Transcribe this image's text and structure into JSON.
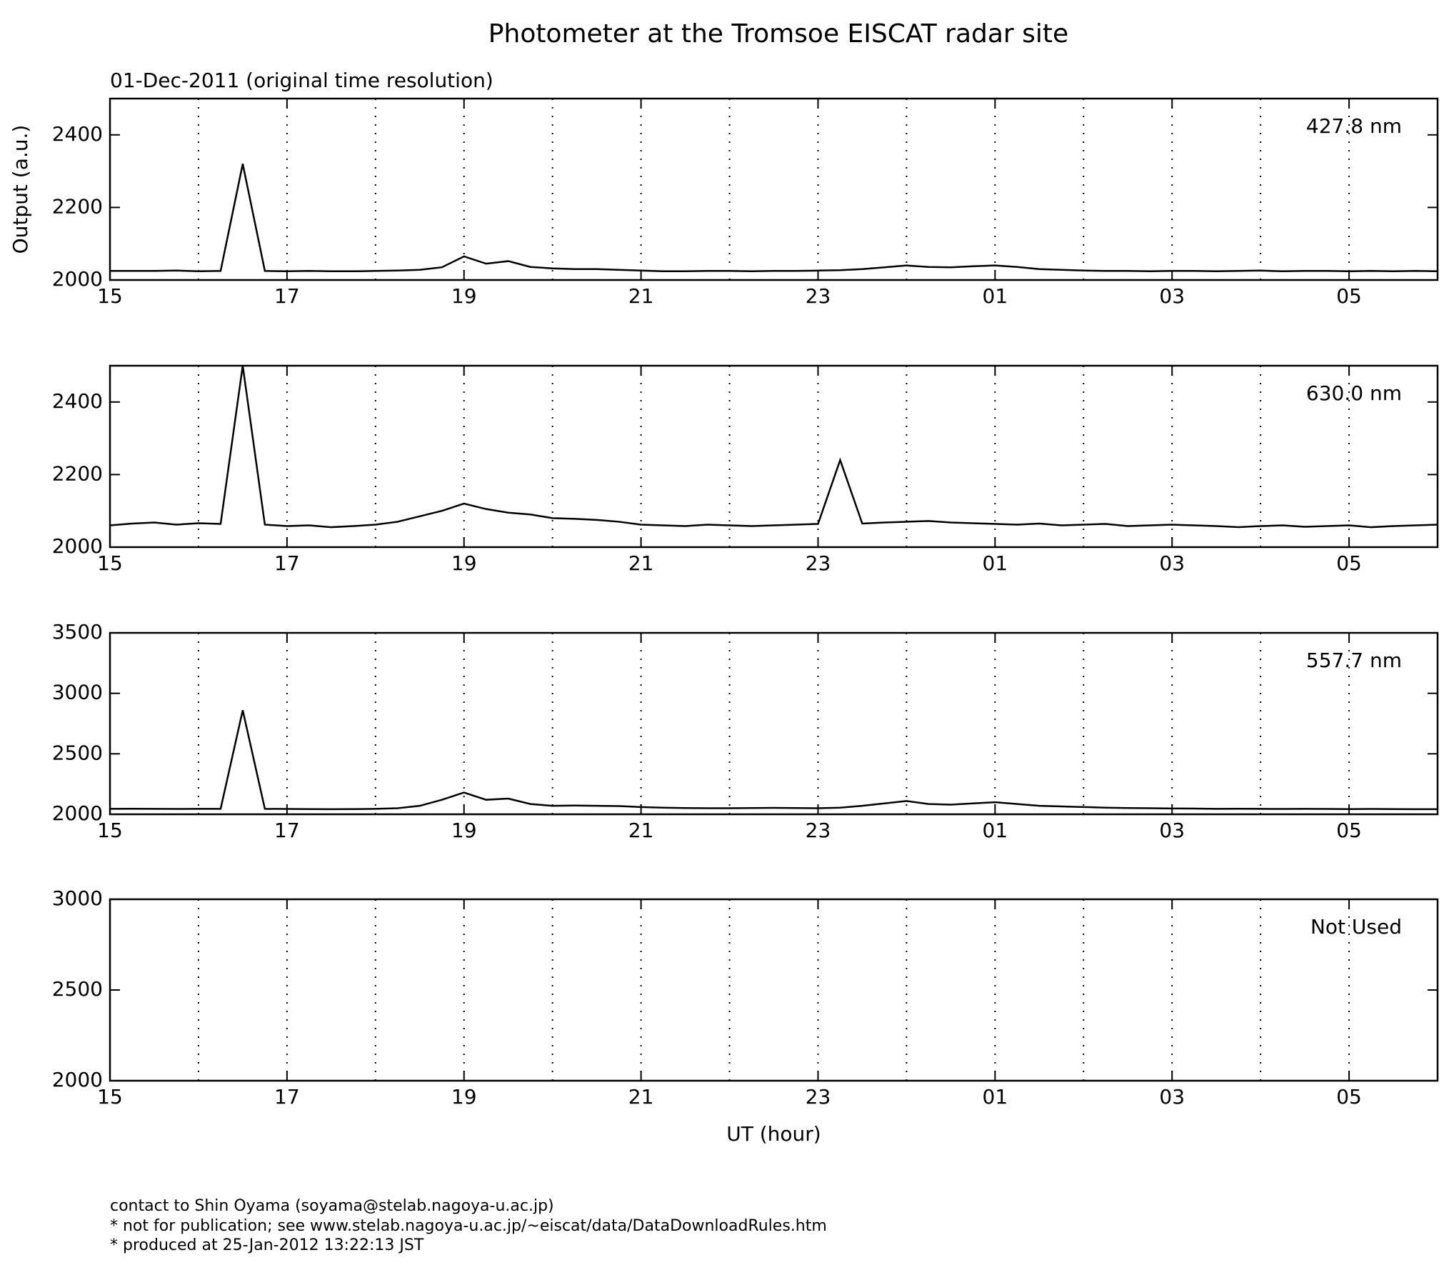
{
  "title": "Photometer at the Tromsoe EISCAT radar site",
  "footer": [
    "contact to Shin Oyama (soyama@stelab.nagoya-u.ac.jp)",
    "* not for publication; see www.stelab.nagoya-u.ac.jp/~eiscat/data/DataDownloadRules.htm",
    "* produced at 25-Jan-2012 13:22:13 JST"
  ],
  "chart_data": [
    {
      "type": "line",
      "subtitle": "01-Dec-2011 (original time resolution)",
      "ylabel": "Output (a.u.)",
      "xlim": [
        15,
        30
      ],
      "xticks": [
        15,
        17,
        19,
        21,
        23,
        {
          "value": 25,
          "label": "01"
        },
        {
          "value": 27,
          "label": "03"
        },
        {
          "value": 29,
          "label": "05"
        }
      ],
      "xgrid_minor": [
        16,
        18,
        20,
        22,
        24,
        26,
        28
      ],
      "grid": true,
      "ylim": [
        2000,
        2500
      ],
      "yticks": [
        2000,
        2200,
        2400
      ],
      "x": [
        15,
        15.25,
        15.5,
        15.75,
        16,
        16.25,
        16.5,
        16.75,
        17,
        17.25,
        17.5,
        17.75,
        18,
        18.25,
        18.5,
        18.75,
        19,
        19.25,
        19.5,
        19.75,
        20,
        20.25,
        20.5,
        20.75,
        21,
        21.25,
        21.5,
        21.75,
        22,
        22.25,
        22.5,
        22.75,
        23,
        23.25,
        23.5,
        23.75,
        24,
        24.25,
        24.5,
        24.75,
        25,
        25.25,
        25.5,
        25.75,
        26,
        26.25,
        26.5,
        26.75,
        27,
        27.25,
        27.5,
        27.75,
        28,
        28.25,
        28.5,
        28.75,
        29,
        29.25,
        29.5,
        29.75,
        30
      ],
      "series": [
        {
          "name": "427.8 nm",
          "color": "#000000",
          "values": [
            2025,
            2025,
            2025,
            2026,
            2024,
            2025,
            2320,
            2025,
            2024,
            2025,
            2024,
            2024,
            2025,
            2026,
            2028,
            2035,
            2065,
            2045,
            2052,
            2036,
            2032,
            2030,
            2030,
            2028,
            2026,
            2024,
            2024,
            2025,
            2025,
            2024,
            2025,
            2025,
            2026,
            2027,
            2030,
            2035,
            2040,
            2036,
            2035,
            2038,
            2040,
            2036,
            2030,
            2028,
            2026,
            2025,
            2025,
            2024,
            2025,
            2025,
            2024,
            2025,
            2026,
            2024,
            2025,
            2025,
            2024,
            2025,
            2024,
            2025,
            2024
          ]
        }
      ]
    },
    {
      "type": "line",
      "xlim": [
        15,
        30
      ],
      "xticks": [
        15,
        17,
        19,
        21,
        23,
        {
          "value": 25,
          "label": "01"
        },
        {
          "value": 27,
          "label": "03"
        },
        {
          "value": 29,
          "label": "05"
        }
      ],
      "xgrid_minor": [
        16,
        18,
        20,
        22,
        24,
        26,
        28
      ],
      "grid": true,
      "ylim": [
        2000,
        2500
      ],
      "yticks": [
        2000,
        2200,
        2400
      ],
      "x": [
        15,
        15.25,
        15.5,
        15.75,
        16,
        16.25,
        16.5,
        16.75,
        17,
        17.25,
        17.5,
        17.75,
        18,
        18.25,
        18.5,
        18.75,
        19,
        19.25,
        19.5,
        19.75,
        20,
        20.25,
        20.5,
        20.75,
        21,
        21.25,
        21.5,
        21.75,
        22,
        22.25,
        22.5,
        22.75,
        23,
        23.25,
        23.5,
        23.75,
        24,
        24.25,
        24.5,
        24.75,
        25,
        25.25,
        25.5,
        25.75,
        26,
        26.25,
        26.5,
        26.75,
        27,
        27.25,
        27.5,
        27.75,
        28,
        28.25,
        28.5,
        28.75,
        29,
        29.25,
        29.5,
        29.75,
        30
      ],
      "series": [
        {
          "name": "630.0 nm",
          "color": "#000000",
          "values": [
            2060,
            2065,
            2068,
            2062,
            2066,
            2064,
            2500,
            2062,
            2058,
            2060,
            2055,
            2058,
            2062,
            2070,
            2085,
            2100,
            2120,
            2105,
            2095,
            2090,
            2080,
            2078,
            2075,
            2070,
            2062,
            2060,
            2058,
            2062,
            2060,
            2058,
            2060,
            2062,
            2064,
            2240,
            2065,
            2068,
            2070,
            2072,
            2068,
            2066,
            2064,
            2062,
            2065,
            2060,
            2062,
            2064,
            2058,
            2060,
            2062,
            2060,
            2058,
            2055,
            2058,
            2060,
            2056,
            2058,
            2060,
            2055,
            2058,
            2060,
            2062
          ]
        }
      ]
    },
    {
      "type": "line",
      "xlim": [
        15,
        30
      ],
      "xticks": [
        15,
        17,
        19,
        21,
        23,
        {
          "value": 25,
          "label": "01"
        },
        {
          "value": 27,
          "label": "03"
        },
        {
          "value": 29,
          "label": "05"
        }
      ],
      "xgrid_minor": [
        16,
        18,
        20,
        22,
        24,
        26,
        28
      ],
      "grid": true,
      "ylim": [
        2000,
        3500
      ],
      "yticks": [
        2000,
        2500,
        3000,
        3500
      ],
      "x": [
        15,
        15.25,
        15.5,
        15.75,
        16,
        16.25,
        16.5,
        16.75,
        17,
        17.25,
        17.5,
        17.75,
        18,
        18.25,
        18.5,
        18.75,
        19,
        19.25,
        19.5,
        19.75,
        20,
        20.25,
        20.5,
        20.75,
        21,
        21.25,
        21.5,
        21.75,
        22,
        22.25,
        22.5,
        22.75,
        23,
        23.25,
        23.5,
        23.75,
        24,
        24.25,
        24.5,
        24.75,
        25,
        25.25,
        25.5,
        25.75,
        26,
        26.25,
        26.5,
        26.75,
        27,
        27.25,
        27.5,
        27.75,
        28,
        28.25,
        28.5,
        28.75,
        29,
        29.25,
        29.5,
        29.75,
        30
      ],
      "series": [
        {
          "name": "557.7 nm",
          "color": "#000000",
          "values": [
            2045,
            2046,
            2045,
            2044,
            2045,
            2045,
            2860,
            2045,
            2044,
            2043,
            2042,
            2043,
            2045,
            2050,
            2070,
            2120,
            2180,
            2120,
            2130,
            2085,
            2070,
            2072,
            2070,
            2068,
            2060,
            2055,
            2052,
            2050,
            2050,
            2052,
            2053,
            2052,
            2050,
            2055,
            2070,
            2090,
            2110,
            2085,
            2080,
            2090,
            2100,
            2085,
            2070,
            2065,
            2060,
            2055,
            2052,
            2050,
            2048,
            2047,
            2045,
            2046,
            2045,
            2044,
            2045,
            2044,
            2043,
            2044,
            2043,
            2042,
            2042
          ]
        }
      ]
    },
    {
      "type": "line",
      "annotation": "Not Used",
      "xlabel": "UT (hour)",
      "xlim": [
        15,
        30
      ],
      "xticks": [
        15,
        17,
        19,
        21,
        23,
        {
          "value": 25,
          "label": "01"
        },
        {
          "value": 27,
          "label": "03"
        },
        {
          "value": 29,
          "label": "05"
        }
      ],
      "xgrid_minor": [
        16,
        18,
        20,
        22,
        24,
        26,
        28
      ],
      "grid": true,
      "ylim": [
        2000,
        3000
      ],
      "yticks": [
        2000,
        2500,
        3000
      ],
      "series": []
    }
  ]
}
